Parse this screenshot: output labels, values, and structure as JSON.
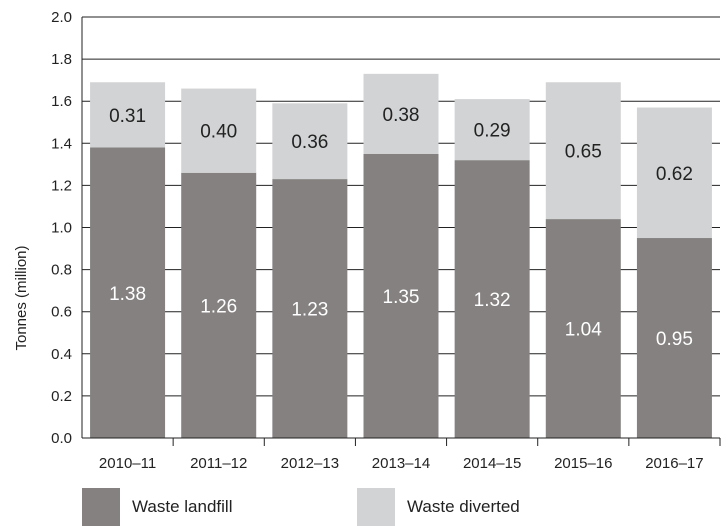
{
  "chart_data": {
    "type": "bar",
    "stacked": true,
    "categories": [
      "2010–11",
      "2011–12",
      "2012–13",
      "2013–14",
      "2014–15",
      "2015–16",
      "2016–17"
    ],
    "series": [
      {
        "name": "Waste landfill",
        "values": [
          1.38,
          1.26,
          1.23,
          1.35,
          1.32,
          1.04,
          0.95
        ],
        "color": "#848180",
        "label_color": "#ffffff"
      },
      {
        "name": "Waste diverted",
        "values": [
          0.31,
          0.4,
          0.36,
          0.38,
          0.29,
          0.65,
          0.62
        ],
        "color": "#d2d3d4",
        "label_color": "#222222"
      }
    ],
    "data_labels": [
      [
        "1.38",
        "1.26",
        "1.23",
        "1.35",
        "1.32",
        "1.04",
        "0.95"
      ],
      [
        "0.31",
        "0.40",
        "0.36",
        "0.38",
        "0.29",
        "0.65",
        "0.62"
      ]
    ],
    "ylabel": "Tonnes (million)",
    "ylim": [
      0,
      2.0
    ],
    "yticks": [
      "0.0",
      "0.2",
      "0.4",
      "0.6",
      "0.8",
      "1.0",
      "1.2",
      "1.4",
      "1.6",
      "1.8",
      "2.0"
    ],
    "grid": true,
    "legend_position": "bottom"
  }
}
